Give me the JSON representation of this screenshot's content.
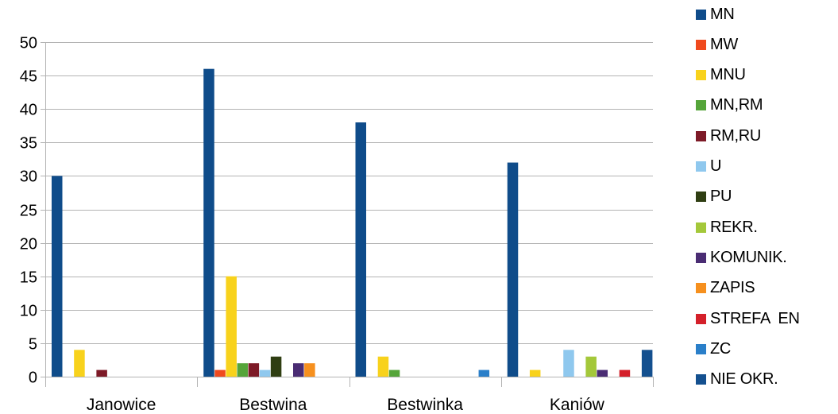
{
  "chart_data": {
    "type": "bar",
    "title": "",
    "xlabel": "",
    "ylabel": "",
    "ylim": [
      0,
      50
    ],
    "yticks": [
      "0",
      "5",
      "10",
      "15",
      "20",
      "25",
      "30",
      "35",
      "40",
      "45",
      "50"
    ],
    "grid": true,
    "legend_position": "right",
    "categories": [
      "Janowice",
      "Bestwina",
      "Bestwinka",
      "Kaniów"
    ],
    "series": [
      {
        "name": "MN",
        "color": "#0f4c8a",
        "values": [
          30,
          46,
          38,
          32
        ]
      },
      {
        "name": "MW",
        "color": "#f04a1e",
        "values": [
          0,
          1,
          0,
          0
        ]
      },
      {
        "name": "MNU",
        "color": "#f8d21c",
        "values": [
          4,
          15,
          3,
          1
        ]
      },
      {
        "name": "MN,RM",
        "color": "#55a53a",
        "values": [
          0,
          2,
          1,
          0
        ]
      },
      {
        "name": "RM,RU",
        "color": "#7d1a27",
        "values": [
          1,
          2,
          0,
          0
        ]
      },
      {
        "name": "U",
        "color": "#8fc8ee",
        "values": [
          0,
          1,
          0,
          4
        ]
      },
      {
        "name": "PU",
        "color": "#2f3e12",
        "values": [
          0,
          3,
          0,
          0
        ]
      },
      {
        "name": "REKR.",
        "color": "#a4c83a",
        "values": [
          0,
          0,
          0,
          3
        ]
      },
      {
        "name": "KOMUNIK.",
        "color": "#4a2c73",
        "values": [
          0,
          2,
          0,
          1
        ]
      },
      {
        "name": "ZAPIS",
        "color": "#f6901e",
        "values": [
          0,
          2,
          0,
          0
        ]
      },
      {
        "name": "STREFA  EN",
        "color": "#d4202a",
        "values": [
          0,
          0,
          0,
          1
        ]
      },
      {
        "name": "ZC",
        "color": "#2a7fc9",
        "values": [
          0,
          0,
          1,
          0
        ]
      },
      {
        "name": "NIE OKR.",
        "color": "#14508f",
        "values": [
          0,
          0,
          0,
          4
        ]
      }
    ]
  }
}
